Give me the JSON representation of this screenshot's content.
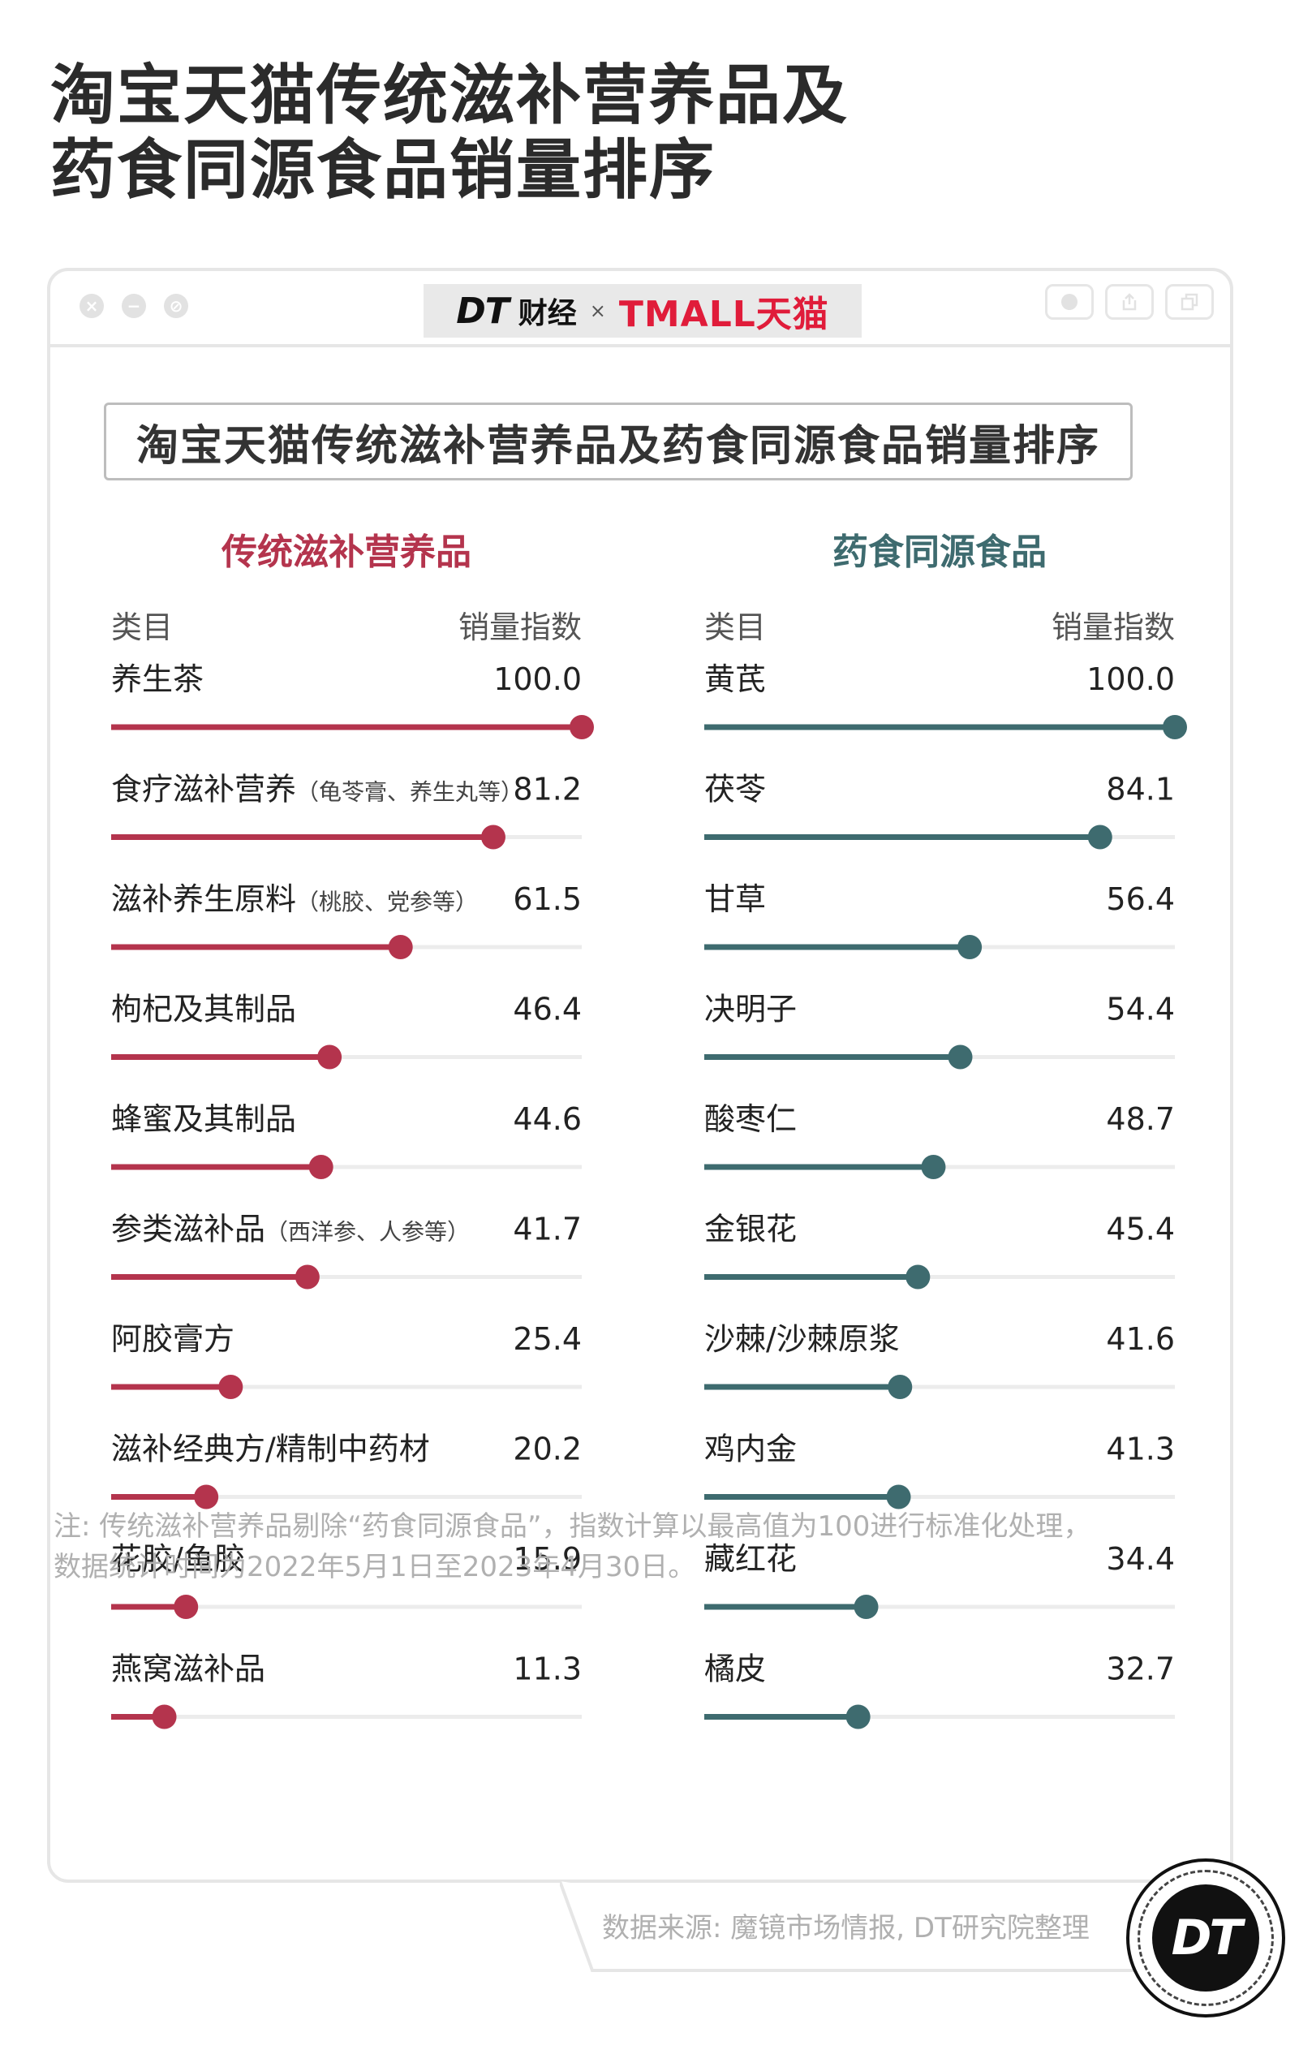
{
  "page": {
    "title_line1": "淘宝天猫传统滋补营养品及",
    "title_line2": "药食同源食品销量排序"
  },
  "window": {
    "brand_dt": "DT",
    "brand_cj": "财经",
    "brand_x": "×",
    "brand_tmall": "TMALL天猫"
  },
  "inner_title": "淘宝天猫传统滋补营养品及药食同源食品销量排序",
  "colors": {
    "left_accent": "#b4344d",
    "right_accent": "#3e6b6f",
    "track": "#ececec"
  },
  "chart_data": [
    {
      "type": "bar",
      "title": "传统滋补营养品",
      "xlabel": "类目",
      "ylabel": "销量指数",
      "xlim": [
        0,
        100
      ],
      "color": "#b4344d",
      "categories": [
        "养生茶",
        "食疗滋补营养",
        "滋补养生原料",
        "枸杞及其制品",
        "蜂蜜及其制品",
        "参类滋补品",
        "阿胶膏方",
        "滋补经典方/精制中药材",
        "花胶/鱼胶",
        "燕窝滋补品"
      ],
      "category_notes": [
        "",
        "（龟苓膏、养生丸等）",
        "（桃胶、党参等）",
        "",
        "",
        "（西洋参、人参等）",
        "",
        "",
        "",
        ""
      ],
      "values": [
        100.0,
        81.2,
        61.5,
        46.4,
        44.6,
        41.7,
        25.4,
        20.2,
        15.9,
        11.3
      ],
      "value_labels": [
        "100.0",
        "81.2",
        "61.5",
        "46.4",
        "44.6",
        "41.7",
        "25.4",
        "20.2",
        "15.9",
        "11.3"
      ]
    },
    {
      "type": "bar",
      "title": "药食同源食品",
      "xlabel": "类目",
      "ylabel": "销量指数",
      "xlim": [
        0,
        100
      ],
      "color": "#3e6b6f",
      "categories": [
        "黄芪",
        "茯苓",
        "甘草",
        "决明子",
        "酸枣仁",
        "金银花",
        "沙棘/沙棘原浆",
        "鸡内金",
        "藏红花",
        "橘皮"
      ],
      "category_notes": [
        "",
        "",
        "",
        "",
        "",
        "",
        "",
        "",
        "",
        ""
      ],
      "values": [
        100.0,
        84.1,
        56.4,
        54.4,
        48.7,
        45.4,
        41.6,
        41.3,
        34.4,
        32.7
      ],
      "value_labels": [
        "100.0",
        "84.1",
        "56.4",
        "54.4",
        "48.7",
        "45.4",
        "41.6",
        "41.3",
        "34.4",
        "32.7"
      ]
    }
  ],
  "note_line1": "注: 传统滋补营养品剔除“药食同源食品”，指数计算以最高值为100进行标准化处理，",
  "note_line2": "数据统计时间为2022年5月1日至2023年4月30日。",
  "source": "数据来源: 魔镜市场情报, DT研究院整理",
  "logo_text": "DT"
}
